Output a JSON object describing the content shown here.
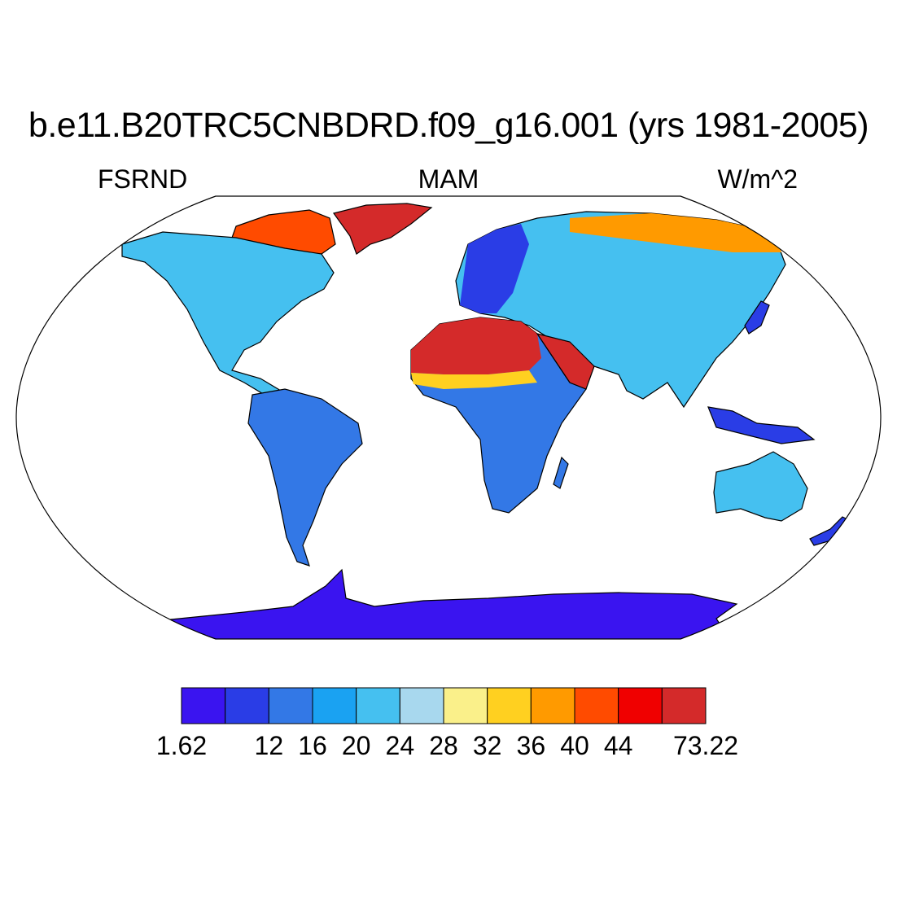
{
  "title": "b.e11.B20TRC5CNBDRD.f09_g16.001 (yrs 1981-2005)",
  "subtitle_left": "FSRND",
  "subtitle_center": "MAM",
  "subtitle_right": "W/m^2",
  "colorbar": {
    "colors": [
      "#3a14f0",
      "#2a3de6",
      "#3378e6",
      "#1aa2f2",
      "#45c0f0",
      "#a8d8ee",
      "#faf08a",
      "#ffd020",
      "#ff9a00",
      "#ff4b00",
      "#f00000",
      "#d42a2a"
    ],
    "tick_labels": [
      "1.62",
      "",
      "12",
      "16",
      "20",
      "24",
      "28",
      "32",
      "36",
      "40",
      "44",
      "",
      "73.22"
    ]
  },
  "regions": {
    "greenland": "#d42a2a",
    "canadian_arctic": "#ff4b00",
    "north_america": "#45c0f0",
    "south_america": "#3378e6",
    "sahara": "#d42a2a",
    "sahel": "#ffd020",
    "africa": "#3378e6",
    "europe": "#2a3de6",
    "siberia": "#ff9a00",
    "asia": "#45c0f0",
    "australia": "#45c0f0",
    "antarctica": "#3a14f0"
  }
}
